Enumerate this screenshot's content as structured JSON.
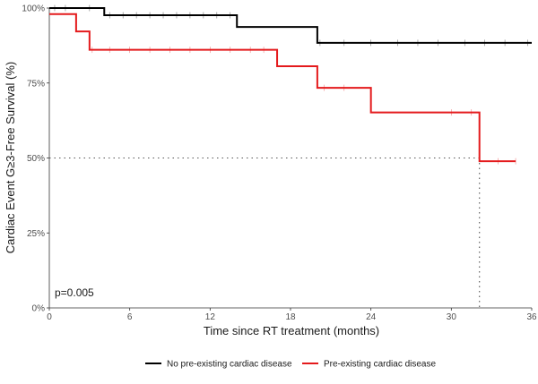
{
  "chart_data": {
    "type": "line",
    "subtype": "kaplan-meier step",
    "xlabel": "Time since RT treatment (months)",
    "ylabel": "Cardiac Event G≥3-Free Survival (%)",
    "xlim": [
      0,
      36
    ],
    "ylim": [
      0,
      100
    ],
    "x_ticks": [
      0,
      6,
      12,
      18,
      24,
      30,
      36
    ],
    "x_tick_labels": [
      "0",
      "6",
      "12",
      "18",
      "24",
      "30",
      "36"
    ],
    "y_ticks": [
      0,
      25,
      50,
      75,
      100
    ],
    "y_tick_labels": [
      "0%",
      "25%",
      "50%",
      "75%",
      "100%"
    ],
    "grid": false,
    "legend_position": "bottom",
    "annotation": "p=0.005",
    "median_reference": {
      "y": 50,
      "x": 32.1
    },
    "series": [
      {
        "name": "No pre-existing cardiac disease",
        "color": "#000000",
        "steps": [
          [
            0,
            100
          ],
          [
            4.1,
            97.6
          ],
          [
            14,
            93.7
          ],
          [
            20,
            88.4
          ],
          [
            36,
            88.4
          ]
        ],
        "censor_times": [
          0.4,
          1.2,
          3,
          4.5,
          5.5,
          6.5,
          7.5,
          8.5,
          9.5,
          10.5,
          11.5,
          12.5,
          13.5,
          20.2,
          22,
          24,
          26,
          27.5,
          29,
          31,
          32.5,
          34,
          35.7
        ]
      },
      {
        "name": "Pre-existing cardiac disease",
        "color": "#e41a1c",
        "steps": [
          [
            0,
            98
          ],
          [
            2,
            92.2
          ],
          [
            3,
            86.1
          ],
          [
            17,
            80.6
          ],
          [
            20,
            73.4
          ],
          [
            24,
            65.2
          ],
          [
            32.1,
            48.9
          ],
          [
            34.8,
            48.9
          ]
        ],
        "censor_times": [
          3.2,
          4.5,
          6,
          7.5,
          9,
          10.5,
          12,
          13.5,
          15,
          16,
          20.5,
          22,
          30,
          31.5,
          33.5,
          34.8
        ]
      }
    ]
  }
}
